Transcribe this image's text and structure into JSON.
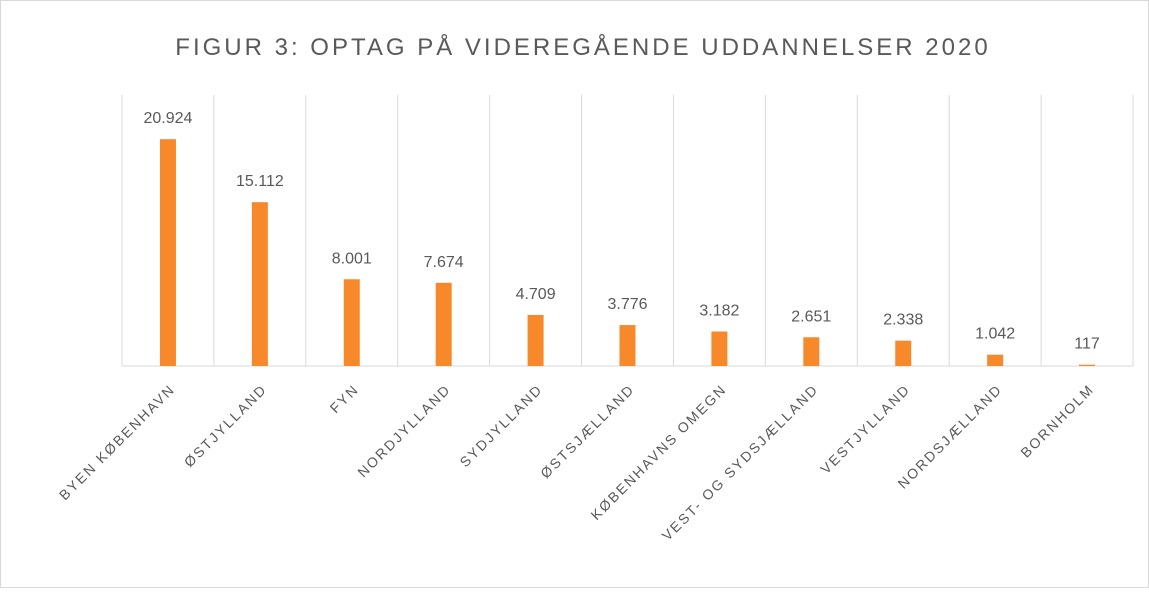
{
  "chart_data": {
    "type": "bar",
    "title": "FIGUR 3: OPTAG PÅ VIDEREGÅENDE UDDANNELSER 2020",
    "categories": [
      "BYEN KØBENHAVN",
      "ØSTJYLLAND",
      "FYN",
      "NORDJYLLAND",
      "SYDJYLLAND",
      "ØSTSJÆLLAND",
      "KØBENHAVNS OMEGN",
      "VEST- OG SYDSJÆLLAND",
      "VESTJYLLAND",
      "NORDSJÆLLAND",
      "BORNHOLM"
    ],
    "values": [
      20924,
      15112,
      8001,
      7674,
      4709,
      3776,
      3182,
      2651,
      2338,
      1042,
      117
    ],
    "value_labels": [
      "20.924",
      "15.112",
      "8.001",
      "7.674",
      "4.709",
      "3.776",
      "3.182",
      "2.651",
      "2.338",
      "1.042",
      "117"
    ],
    "color": "#f7892b",
    "ylim": [
      0,
      25000
    ],
    "grid": true
  }
}
